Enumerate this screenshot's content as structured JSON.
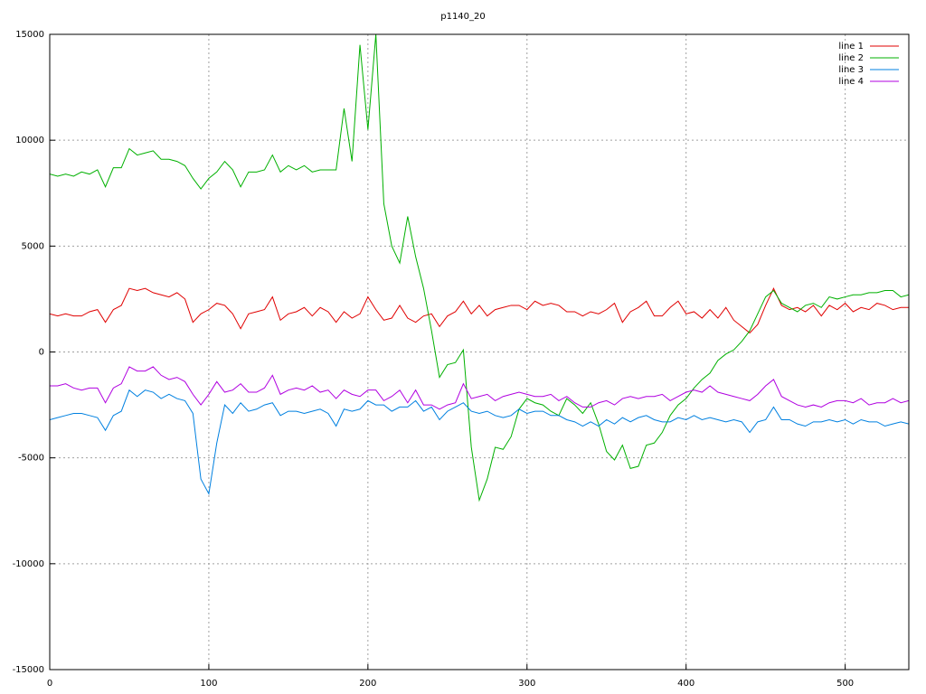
{
  "chart_data": {
    "type": "line",
    "title": "p1140_20",
    "x": [
      0,
      5,
      10,
      15,
      20,
      25,
      30,
      35,
      40,
      45,
      50,
      55,
      60,
      65,
      70,
      75,
      80,
      85,
      90,
      95,
      100,
      105,
      110,
      115,
      120,
      125,
      130,
      135,
      140,
      145,
      150,
      155,
      160,
      165,
      170,
      175,
      180,
      185,
      190,
      195,
      200,
      205,
      210,
      215,
      220,
      225,
      230,
      235,
      240,
      245,
      250,
      255,
      260,
      265,
      270,
      275,
      280,
      285,
      290,
      295,
      300,
      305,
      310,
      315,
      320,
      325,
      330,
      335,
      340,
      345,
      350,
      355,
      360,
      365,
      370,
      375,
      380,
      385,
      390,
      395,
      400,
      405,
      410,
      415,
      420,
      425,
      430,
      435,
      440,
      445,
      450,
      455,
      460,
      465,
      470,
      475,
      480,
      485,
      490,
      495,
      500,
      505,
      510,
      515,
      520,
      525,
      530,
      535,
      540
    ],
    "series": [
      {
        "name": "line 1",
        "color": "#e00000",
        "values": [
          1800,
          1700,
          1800,
          1700,
          1700,
          1900,
          2000,
          1400,
          2000,
          2200,
          3000,
          2900,
          3000,
          2800,
          2700,
          2600,
          2800,
          2500,
          1400,
          1800,
          2000,
          2300,
          2200,
          1800,
          1100,
          1800,
          1900,
          2000,
          2600,
          1500,
          1800,
          1900,
          2100,
          1700,
          2100,
          1900,
          1400,
          1900,
          1600,
          1800,
          2600,
          2000,
          1500,
          1600,
          2200,
          1600,
          1400,
          1700,
          1800,
          1200,
          1700,
          1900,
          2400,
          1800,
          2200,
          1700,
          2000,
          2100,
          2200,
          2200,
          2000,
          2400,
          2200,
          2300,
          2200,
          1900,
          1900,
          1700,
          1900,
          1800,
          2000,
          2300,
          1400,
          1900,
          2100,
          2400,
          1700,
          1700,
          2100,
          2400,
          1800,
          1900,
          1600,
          2000,
          1600,
          2100,
          1500,
          1200,
          900,
          1300,
          2200,
          3000,
          2200,
          2000,
          2100,
          1900,
          2200,
          1700,
          2200,
          2000,
          2300,
          1900,
          2100,
          2000,
          2300,
          2200,
          2000,
          2100,
          2100
        ]
      },
      {
        "name": "line 2",
        "color": "#00b000",
        "values": [
          8400,
          8300,
          8400,
          8300,
          8500,
          8400,
          8600,
          7800,
          8700,
          8700,
          9600,
          9300,
          9400,
          9500,
          9100,
          9100,
          9000,
          8800,
          8200,
          7700,
          8200,
          8500,
          9000,
          8600,
          7800,
          8500,
          8500,
          8600,
          9300,
          8500,
          8800,
          8600,
          8800,
          8500,
          8600,
          8600,
          8600,
          11500,
          9000,
          14500,
          10500,
          15000,
          7000,
          5000,
          4200,
          6400,
          4500,
          3000,
          1000,
          -1200,
          -600,
          -500,
          100,
          -4500,
          -7000,
          -6000,
          -4500,
          -4600,
          -4000,
          -2700,
          -2200,
          -2400,
          -2500,
          -2800,
          -3000,
          -2200,
          -2500,
          -2900,
          -2400,
          -3400,
          -4700,
          -5100,
          -4400,
          -5500,
          -5400,
          -4400,
          -4300,
          -3800,
          -3000,
          -2500,
          -2200,
          -1700,
          -1300,
          -1000,
          -400,
          -100,
          100,
          500,
          1000,
          1800,
          2600,
          2900,
          2300,
          2100,
          1900,
          2200,
          2300,
          2100,
          2600,
          2500,
          2600,
          2700,
          2700,
          2800,
          2800,
          2900,
          2900,
          2600,
          2700
        ]
      },
      {
        "name": "line 3",
        "color": "#0080e0",
        "values": [
          -3200,
          -3100,
          -3000,
          -2900,
          -2900,
          -3000,
          -3100,
          -3700,
          -3000,
          -2800,
          -1800,
          -2100,
          -1800,
          -1900,
          -2200,
          -2000,
          -2200,
          -2300,
          -2900,
          -6000,
          -6700,
          -4300,
          -2500,
          -2900,
          -2400,
          -2800,
          -2700,
          -2500,
          -2400,
          -3000,
          -2800,
          -2800,
          -2900,
          -2800,
          -2700,
          -2900,
          -3500,
          -2700,
          -2800,
          -2700,
          -2300,
          -2500,
          -2500,
          -2800,
          -2600,
          -2600,
          -2300,
          -2800,
          -2600,
          -3200,
          -2800,
          -2600,
          -2400,
          -2800,
          -2900,
          -2800,
          -3000,
          -3100,
          -3000,
          -2700,
          -2900,
          -2800,
          -2800,
          -3000,
          -3000,
          -3200,
          -3300,
          -3500,
          -3300,
          -3500,
          -3200,
          -3400,
          -3100,
          -3300,
          -3100,
          -3000,
          -3200,
          -3300,
          -3300,
          -3100,
          -3200,
          -3000,
          -3200,
          -3100,
          -3200,
          -3300,
          -3200,
          -3300,
          -3800,
          -3300,
          -3200,
          -2600,
          -3200,
          -3200,
          -3400,
          -3500,
          -3300,
          -3300,
          -3200,
          -3300,
          -3200,
          -3400,
          -3200,
          -3300,
          -3300,
          -3500,
          -3400,
          -3300,
          -3400
        ]
      },
      {
        "name": "line 4",
        "color": "#b000e0",
        "values": [
          -1600,
          -1600,
          -1500,
          -1700,
          -1800,
          -1700,
          -1700,
          -2400,
          -1700,
          -1500,
          -700,
          -900,
          -900,
          -700,
          -1100,
          -1300,
          -1200,
          -1400,
          -2000,
          -2500,
          -2000,
          -1400,
          -1900,
          -1800,
          -1500,
          -1900,
          -1900,
          -1700,
          -1100,
          -2000,
          -1800,
          -1700,
          -1800,
          -1600,
          -1900,
          -1800,
          -2200,
          -1800,
          -2000,
          -2100,
          -1800,
          -1800,
          -2300,
          -2100,
          -1800,
          -2400,
          -1800,
          -2500,
          -2500,
          -2700,
          -2500,
          -2400,
          -1500,
          -2200,
          -2100,
          -2000,
          -2300,
          -2100,
          -2000,
          -1900,
          -2000,
          -2100,
          -2100,
          -2000,
          -2300,
          -2100,
          -2400,
          -2600,
          -2600,
          -2400,
          -2300,
          -2500,
          -2200,
          -2100,
          -2200,
          -2100,
          -2100,
          -2000,
          -2300,
          -2100,
          -1900,
          -1800,
          -1900,
          -1600,
          -1900,
          -2000,
          -2100,
          -2200,
          -2300,
          -2000,
          -1600,
          -1300,
          -2100,
          -2300,
          -2500,
          -2600,
          -2500,
          -2600,
          -2400,
          -2300,
          -2300,
          -2400,
          -2200,
          -2500,
          -2400,
          -2400,
          -2200,
          -2400,
          -2300
        ]
      }
    ],
    "xlim": [
      0,
      540
    ],
    "xticks": [
      0,
      100,
      200,
      300,
      400,
      500
    ],
    "ylim": [
      -15000,
      15000
    ],
    "yticks": [
      -15000,
      -10000,
      -5000,
      0,
      5000,
      10000,
      15000
    ],
    "grid": true,
    "legend": "top-right"
  }
}
